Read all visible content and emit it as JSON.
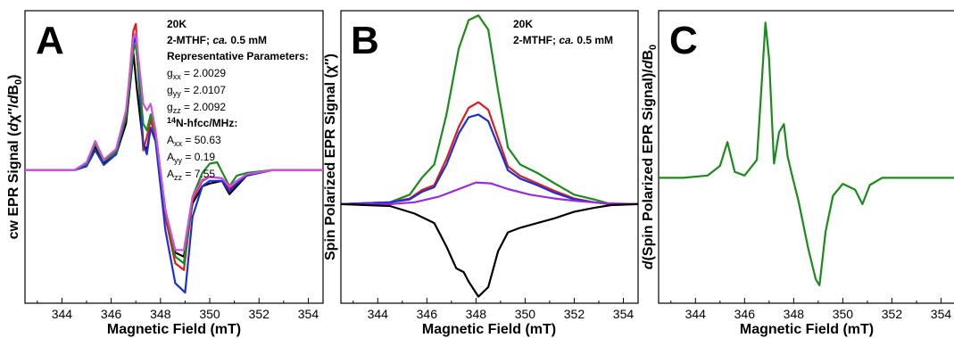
{
  "colors": {
    "black": "#000000",
    "red": "#dd1c1c",
    "blue": "#1a2fd6",
    "green": "#1c8a1c",
    "magenta": "#d050e0",
    "purple": "#9a2cd8"
  },
  "chart_data": [
    {
      "panel": "A",
      "type": "line",
      "xlabel": "Magnetic Field (mT)",
      "ylabel": "cw EPR Signal (dχ″/dB0)",
      "xlim": [
        342.5,
        354.6
      ],
      "ylim": [
        -1.0,
        1.2
      ],
      "xticks": [
        344,
        346,
        348,
        350,
        352,
        354
      ],
      "grid": false,
      "annotations": {
        "temp": "20K",
        "solvent": "2-MTHF; ca. 0.5 mM",
        "params_title": "Representative Parameters:",
        "gxx": "gxx = 2.0029",
        "gyy": "gyy = 2.0107",
        "gzz": "gzz = 2.0092",
        "hfcc_title": "14N-hfcc/MHz:",
        "axx": "Axx = 50.63",
        "ayy": "Ayy = 0.19",
        "azz": "Azz = 7.55"
      },
      "series": [
        {
          "color": "#000000",
          "x": [
            342.5,
            344.5,
            345.0,
            345.35,
            345.7,
            346.2,
            346.6,
            346.9,
            347.05,
            347.3,
            347.45,
            347.6,
            347.8,
            348.2,
            348.6,
            348.95,
            349.3,
            349.7,
            350.0,
            350.5,
            350.8,
            351.1,
            351.5,
            352.5,
            354.6
          ],
          "y": [
            0.0,
            0.0,
            0.05,
            0.18,
            0.05,
            0.12,
            0.35,
            0.88,
            0.6,
            0.2,
            0.15,
            0.32,
            0.22,
            -0.3,
            -0.62,
            -0.65,
            -0.25,
            -0.12,
            -0.1,
            -0.08,
            -0.18,
            -0.12,
            -0.04,
            0.0,
            0.0
          ]
        },
        {
          "color": "#dd1c1c",
          "x": [
            342.5,
            344.5,
            345.0,
            345.35,
            345.7,
            346.2,
            346.6,
            346.9,
            347.0,
            347.3,
            347.45,
            347.6,
            347.8,
            348.2,
            348.6,
            348.95,
            349.3,
            349.7,
            350.0,
            350.5,
            350.8,
            351.1,
            351.5,
            352.5,
            354.6
          ],
          "y": [
            0.0,
            0.0,
            0.05,
            0.2,
            0.07,
            0.14,
            0.4,
            1.05,
            1.1,
            0.15,
            0.25,
            0.38,
            0.25,
            -0.35,
            -0.7,
            -0.75,
            -0.22,
            -0.08,
            -0.05,
            -0.06,
            -0.14,
            -0.1,
            -0.04,
            0.0,
            0.0
          ]
        },
        {
          "color": "#1a2fd6",
          "x": [
            342.5,
            344.5,
            345.0,
            345.35,
            345.7,
            346.2,
            346.6,
            346.9,
            347.0,
            347.3,
            347.45,
            347.6,
            347.8,
            348.2,
            348.6,
            349.0,
            349.3,
            349.7,
            350.0,
            350.5,
            350.8,
            351.1,
            351.5,
            352.5,
            354.6
          ],
          "y": [
            0.0,
            0.0,
            0.03,
            0.15,
            0.04,
            0.12,
            0.4,
            0.95,
            1.0,
            0.2,
            0.12,
            0.32,
            0.22,
            -0.45,
            -0.85,
            -0.92,
            -0.35,
            -0.12,
            -0.08,
            -0.08,
            -0.16,
            -0.1,
            -0.04,
            0.0,
            0.0
          ]
        },
        {
          "color": "#1c8a1c",
          "x": [
            342.5,
            344.5,
            345.0,
            345.35,
            345.7,
            346.2,
            346.6,
            346.9,
            347.0,
            347.3,
            347.45,
            347.6,
            347.8,
            348.2,
            348.6,
            348.95,
            349.3,
            349.7,
            350.0,
            350.3,
            350.8,
            351.1,
            351.5,
            352.5,
            354.6
          ],
          "y": [
            0.0,
            0.0,
            0.05,
            0.2,
            0.07,
            0.14,
            0.4,
            0.9,
            0.95,
            0.35,
            0.3,
            0.42,
            0.28,
            -0.3,
            -0.65,
            -0.7,
            -0.2,
            -0.02,
            0.05,
            0.06,
            -0.12,
            -0.04,
            -0.02,
            0.0,
            0.0
          ]
        },
        {
          "color": "#d050e0",
          "x": [
            342.5,
            344.5,
            345.0,
            345.35,
            345.7,
            346.2,
            346.6,
            346.9,
            347.0,
            347.3,
            347.45,
            347.6,
            347.8,
            348.2,
            348.6,
            348.95,
            349.3,
            349.7,
            350.0,
            350.5,
            350.8,
            351.1,
            351.5,
            352.5,
            354.6
          ],
          "y": [
            0.0,
            0.0,
            0.06,
            0.22,
            0.08,
            0.16,
            0.45,
            1.0,
            1.03,
            0.5,
            0.45,
            0.5,
            0.3,
            -0.3,
            -0.6,
            -0.6,
            -0.2,
            -0.07,
            -0.05,
            -0.06,
            -0.12,
            -0.08,
            -0.03,
            0.0,
            0.0
          ]
        }
      ]
    },
    {
      "panel": "B",
      "type": "line",
      "xlabel": "Magnetic Field (mT)",
      "ylabel": "Spin Polarized EPR Signal (χ″)",
      "xlim": [
        342.5,
        354.6
      ],
      "ylim": [
        -1.05,
        2.05
      ],
      "xticks": [
        344,
        346,
        348,
        350,
        352,
        354
      ],
      "grid": false,
      "annotations": {
        "temp": "20K",
        "solvent": "2-MTHF; ca. 0.5 mM"
      },
      "series": [
        {
          "color": "#1c8a1c",
          "x": [
            342.5,
            344.5,
            345.3,
            345.8,
            346.3,
            346.8,
            347.3,
            347.7,
            348.1,
            348.5,
            348.9,
            349.3,
            349.8,
            350.5,
            351.2,
            352.0,
            352.8,
            353.5,
            354.6
          ],
          "y": [
            0.0,
            0.02,
            0.1,
            0.28,
            0.42,
            0.95,
            1.65,
            1.95,
            2.0,
            1.85,
            1.2,
            0.6,
            0.42,
            0.33,
            0.22,
            0.1,
            0.05,
            0.0,
            0.0
          ]
        },
        {
          "color": "#dd1c1c",
          "x": [
            342.5,
            344.5,
            345.3,
            345.8,
            346.3,
            346.8,
            347.3,
            347.7,
            348.1,
            348.5,
            348.9,
            349.3,
            349.8,
            350.5,
            351.2,
            352.0,
            352.8,
            353.5,
            354.6
          ],
          "y": [
            0.0,
            0.02,
            0.06,
            0.15,
            0.2,
            0.48,
            0.82,
            1.02,
            1.08,
            1.0,
            0.7,
            0.4,
            0.3,
            0.22,
            0.14,
            0.06,
            0.02,
            0.0,
            0.0
          ]
        },
        {
          "color": "#1a2fd6",
          "x": [
            342.5,
            344.5,
            345.3,
            345.8,
            346.3,
            346.8,
            347.3,
            347.7,
            348.1,
            348.5,
            348.9,
            349.3,
            349.8,
            350.5,
            351.2,
            352.0,
            352.8,
            353.5,
            354.6
          ],
          "y": [
            0.0,
            0.02,
            0.05,
            0.13,
            0.18,
            0.42,
            0.75,
            0.92,
            0.95,
            0.88,
            0.62,
            0.36,
            0.27,
            0.2,
            0.12,
            0.05,
            0.02,
            0.0,
            0.0
          ]
        },
        {
          "color": "#9a2cd8",
          "x": [
            342.5,
            344.5,
            345.5,
            346.5,
            347.3,
            348.0,
            348.6,
            349.3,
            350.2,
            351.2,
            352.2,
            353.2,
            354.6
          ],
          "y": [
            0.0,
            0.0,
            0.02,
            0.08,
            0.16,
            0.23,
            0.22,
            0.16,
            0.1,
            0.06,
            0.03,
            0.01,
            0.0
          ]
        },
        {
          "color": "#000000",
          "x": [
            342.5,
            344.5,
            345.5,
            346.3,
            346.8,
            347.2,
            347.5,
            347.7,
            348.1,
            348.5,
            348.9,
            349.3,
            349.8,
            350.5,
            351.2,
            352.0,
            352.8,
            353.5,
            354.6
          ],
          "y": [
            0.0,
            -0.02,
            -0.1,
            -0.2,
            -0.45,
            -0.68,
            -0.72,
            -0.82,
            -0.98,
            -0.88,
            -0.5,
            -0.3,
            -0.25,
            -0.2,
            -0.15,
            -0.08,
            -0.04,
            -0.01,
            0.0
          ]
        }
      ]
    },
    {
      "panel": "C",
      "type": "line",
      "xlabel": "Magnetic Field (mT)",
      "ylabel": "d(Spin Polarized EPR Signal)/dB0",
      "xlim": [
        342.5,
        354.6
      ],
      "ylim": [
        -1.05,
        1.4
      ],
      "xticks": [
        344,
        346,
        348,
        350,
        352,
        354
      ],
      "grid": false,
      "series": [
        {
          "color": "#1c8a1c",
          "x": [
            342.5,
            343.5,
            344.5,
            345.0,
            345.3,
            345.6,
            346.0,
            346.5,
            346.7,
            346.85,
            347.0,
            347.2,
            347.4,
            347.6,
            347.75,
            347.9,
            348.2,
            348.6,
            348.9,
            349.05,
            349.3,
            349.6,
            350.0,
            350.5,
            350.8,
            351.1,
            351.6,
            352.5,
            353.5,
            354.6
          ],
          "y": [
            0.0,
            0.0,
            0.02,
            0.1,
            0.3,
            0.05,
            0.02,
            0.15,
            0.8,
            1.3,
            1.0,
            0.12,
            0.38,
            0.45,
            0.18,
            0.05,
            -0.2,
            -0.6,
            -0.85,
            -0.9,
            -0.45,
            -0.15,
            -0.05,
            -0.1,
            -0.22,
            -0.06,
            0.0,
            0.0,
            0.0,
            0.0
          ]
        }
      ]
    }
  ]
}
